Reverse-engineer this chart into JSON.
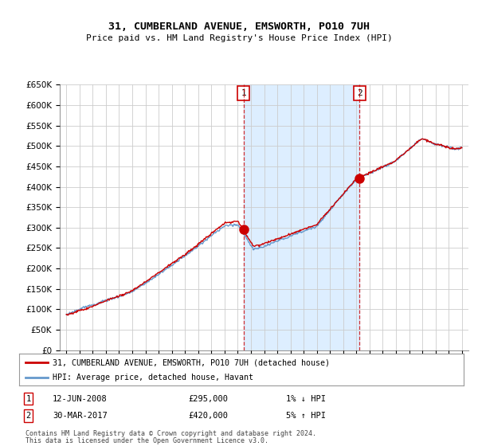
{
  "title": "31, CUMBERLAND AVENUE, EMSWORTH, PO10 7UH",
  "subtitle": "Price paid vs. HM Land Registry's House Price Index (HPI)",
  "ylim": [
    0,
    650000
  ],
  "yticks": [
    0,
    50000,
    100000,
    150000,
    200000,
    250000,
    300000,
    350000,
    400000,
    450000,
    500000,
    550000,
    600000,
    650000
  ],
  "x_start_year": 1995,
  "x_end_year": 2025,
  "sale1_date": 2008.44,
  "sale1_price": 295000,
  "sale1_label": "1",
  "sale2_date": 2017.24,
  "sale2_price": 420000,
  "sale2_label": "2",
  "legend_house": "31, CUMBERLAND AVENUE, EMSWORTH, PO10 7UH (detached house)",
  "legend_hpi": "HPI: Average price, detached house, Havant",
  "house_color": "#cc0000",
  "hpi_color": "#6699cc",
  "shade_color": "#ddeeff",
  "vline_color": "#cc0000",
  "bg_color": "#ffffff",
  "grid_color": "#cccccc",
  "footnote1": "Contains HM Land Registry data © Crown copyright and database right 2024.",
  "footnote2": "This data is licensed under the Open Government Licence v3.0."
}
